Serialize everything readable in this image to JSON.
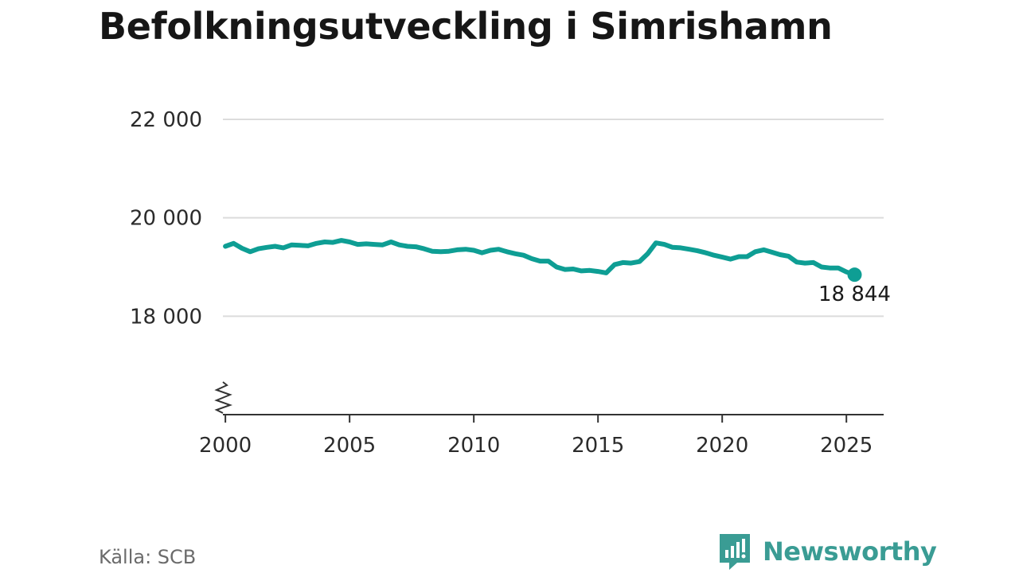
{
  "title": "Befolkningsutveckling i Simrishamn",
  "source": "Källa: SCB",
  "brand": {
    "name": "Newsworthy",
    "icon": "newsworthy-logo-icon",
    "color": "#3a9c94"
  },
  "colors": {
    "line": "#0e9e94",
    "grid": "#dcdcdc",
    "axis": "#333333"
  },
  "chart_data": {
    "type": "line",
    "title": "Befolkningsutveckling i Simrishamn",
    "xlabel": "",
    "ylabel": "",
    "xlim": [
      1999.9,
      2026.5
    ],
    "ylim": [
      16000,
      22000
    ],
    "y_axis_break": true,
    "grid": "horizontal",
    "x_ticks": [
      2000,
      2005,
      2010,
      2015,
      2020,
      2025
    ],
    "x_tick_labels": [
      "2000",
      "2005",
      "2010",
      "2015",
      "2020",
      "2025"
    ],
    "y_ticks": [
      18000,
      20000,
      22000
    ],
    "y_tick_labels": [
      "18 000",
      "20 000",
      "22 000"
    ],
    "end_label": "18 844",
    "series": [
      {
        "x": [
          2000.0,
          2000.33,
          2000.67,
          2001.0,
          2001.33,
          2001.67,
          2002.0,
          2002.33,
          2002.67,
          2003.0,
          2003.33,
          2003.67,
          2004.0,
          2004.33,
          2004.67,
          2005.0,
          2005.33,
          2005.67,
          2006.0,
          2006.33,
          2006.67,
          2007.0,
          2007.33,
          2007.67,
          2008.0,
          2008.33,
          2008.67,
          2009.0,
          2009.33,
          2009.67,
          2010.0,
          2010.33,
          2010.67,
          2011.0,
          2011.33,
          2011.67,
          2012.0,
          2012.33,
          2012.67,
          2013.0,
          2013.33,
          2013.67,
          2014.0,
          2014.33,
          2014.67,
          2015.0,
          2015.33,
          2015.67,
          2016.0,
          2016.33,
          2016.67,
          2017.0,
          2017.33,
          2017.67,
          2018.0,
          2018.33,
          2018.67,
          2019.0,
          2019.33,
          2019.67,
          2020.0,
          2020.33,
          2020.67,
          2021.0,
          2021.33,
          2021.67,
          2022.0,
          2022.33,
          2022.67,
          2023.0,
          2023.33,
          2023.67,
          2024.0,
          2024.33,
          2024.67,
          2025.0,
          2025.33
        ],
        "values": [
          19420,
          19480,
          19380,
          19310,
          19370,
          19400,
          19420,
          19390,
          19450,
          19440,
          19430,
          19480,
          19510,
          19500,
          19540,
          19510,
          19460,
          19470,
          19460,
          19450,
          19510,
          19450,
          19420,
          19410,
          19370,
          19320,
          19310,
          19320,
          19350,
          19360,
          19340,
          19290,
          19340,
          19360,
          19310,
          19270,
          19240,
          19170,
          19120,
          19120,
          19000,
          18950,
          18960,
          18920,
          18930,
          18910,
          18880,
          19050,
          19090,
          19080,
          19110,
          19270,
          19490,
          19460,
          19400,
          19390,
          19360,
          19330,
          19290,
          19240,
          19200,
          19160,
          19210,
          19210,
          19310,
          19350,
          19300,
          19250,
          19220,
          19100,
          19080,
          19090,
          19000,
          18980,
          18980,
          18900,
          18844
        ]
      }
    ]
  }
}
